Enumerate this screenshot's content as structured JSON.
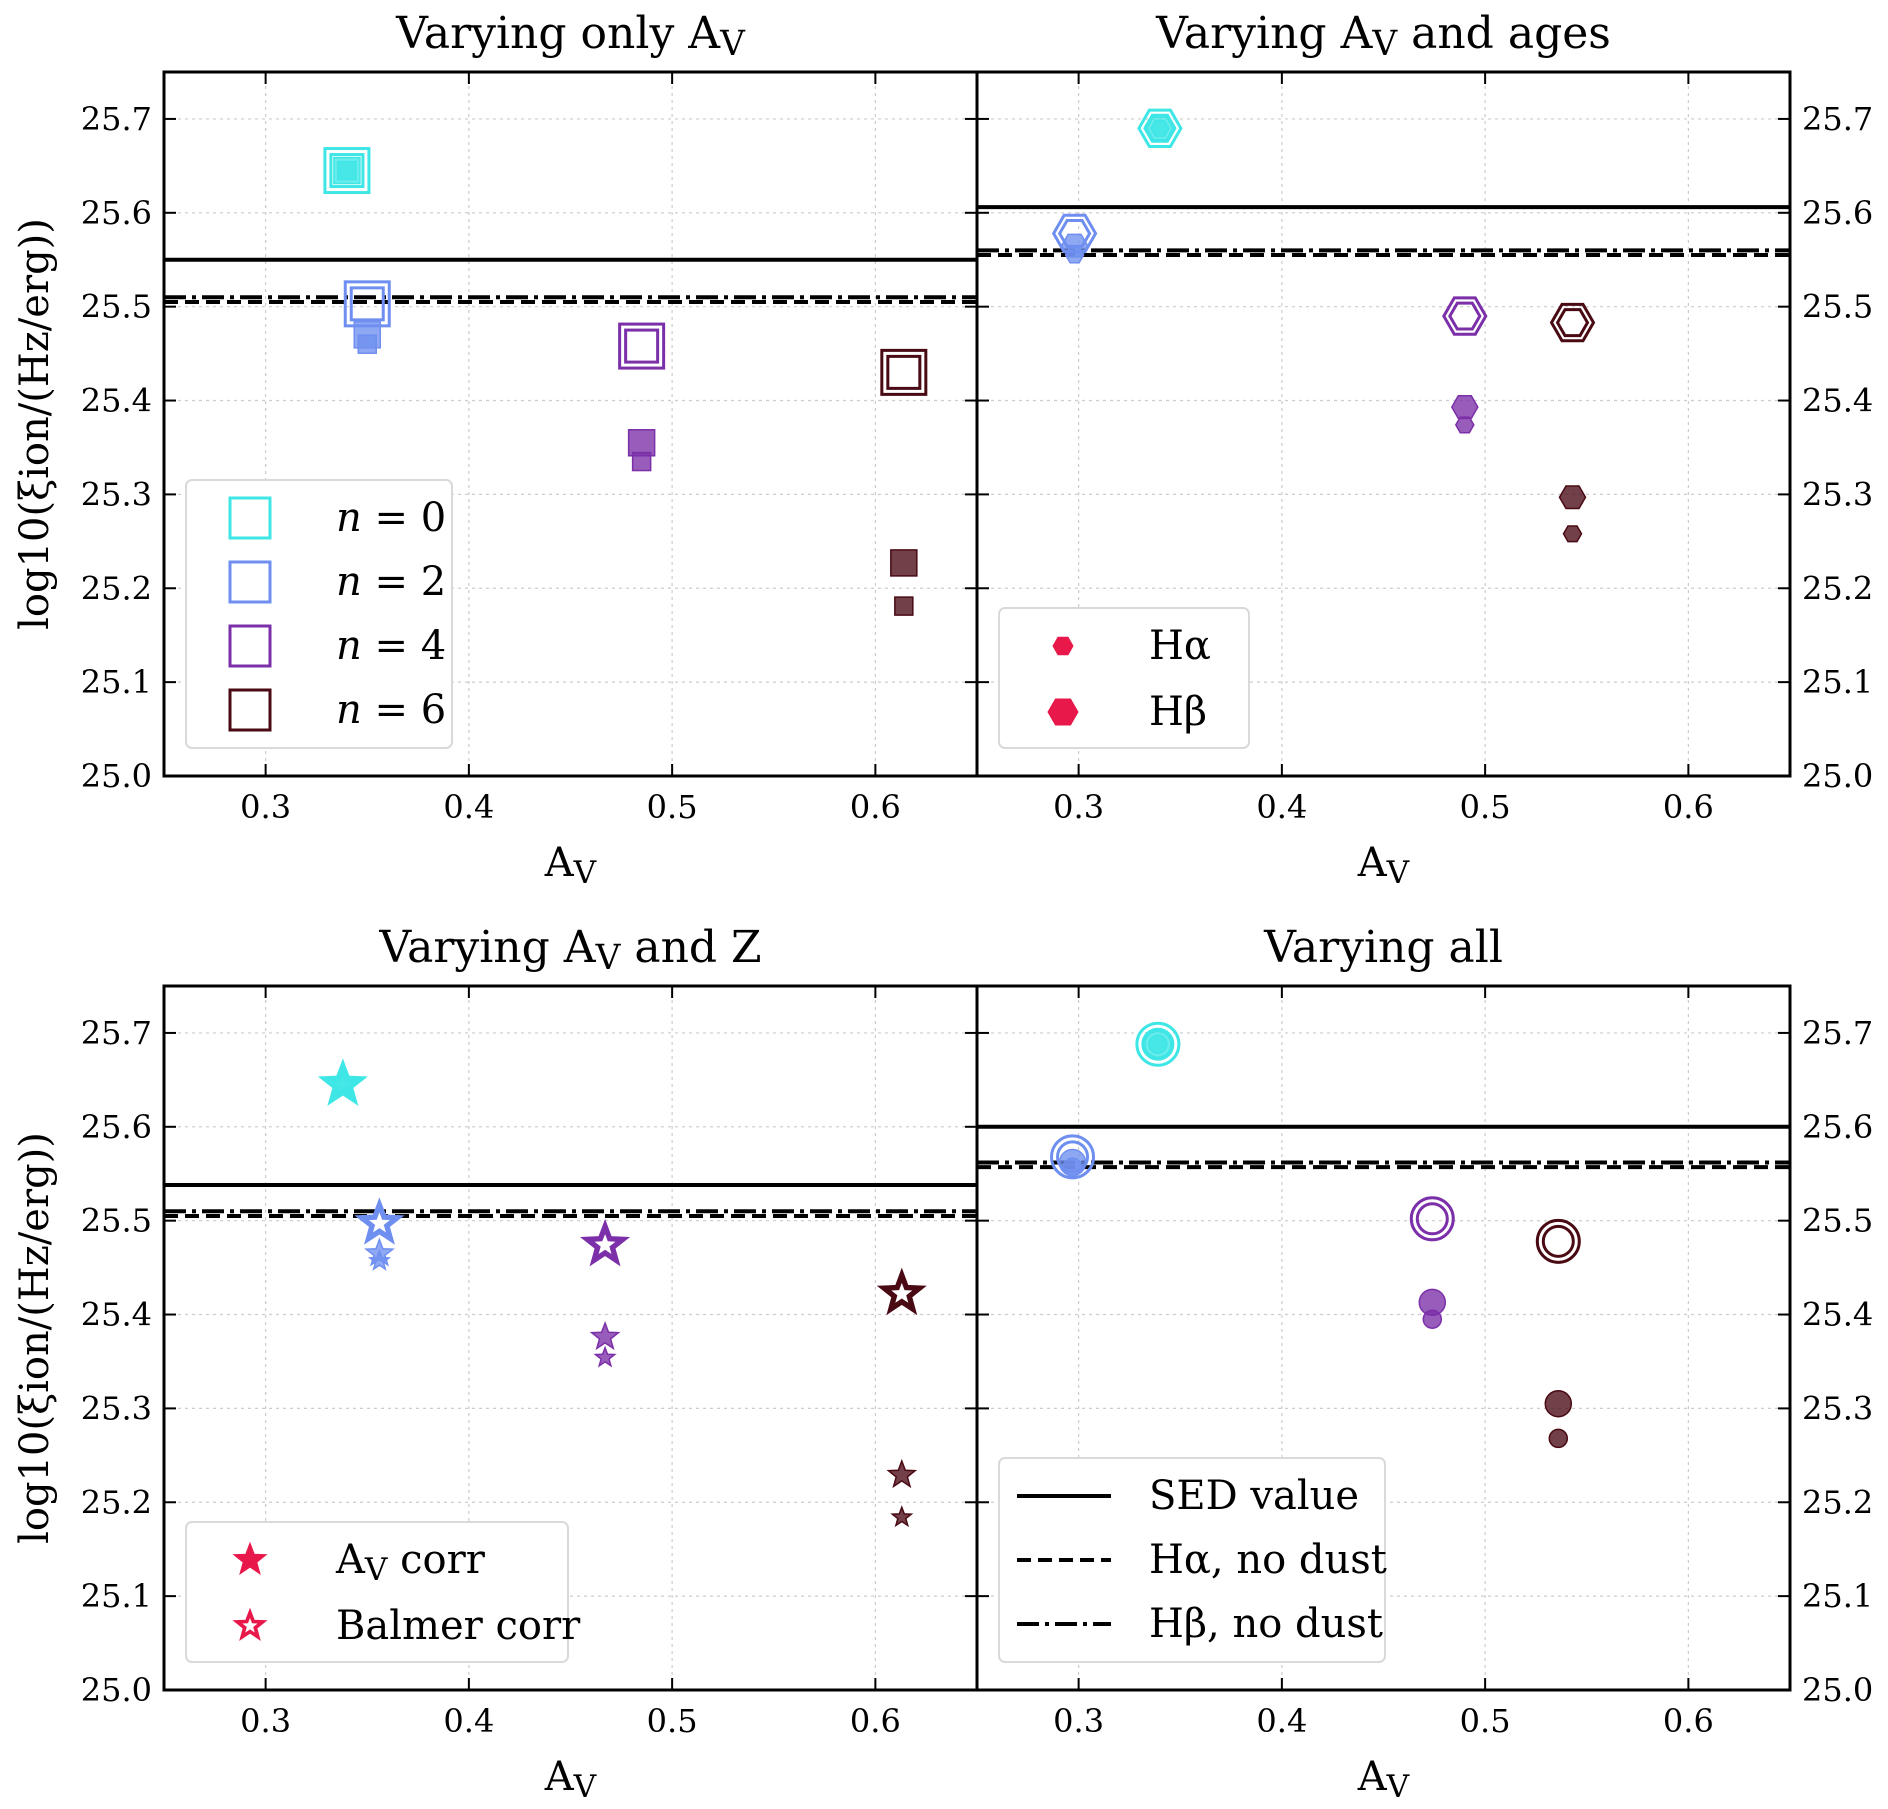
{
  "colors": {
    "n0": "#3ee6e6",
    "n2": "#6f8ff0",
    "n4": "#7b2fa8",
    "n6": "#4a0a14",
    "legend_marker": "#e8184a"
  },
  "chart_data": [
    {
      "type": "scatter",
      "title": "Varying only A_V",
      "title_main": "Varying only A",
      "title_sub": "V",
      "xlabel": "A",
      "xlabel_sub": "V",
      "ylabel": "log10(ξion/(Hz/erg))",
      "xlim": [
        0.25,
        0.65
      ],
      "ylim": [
        25.0,
        25.75
      ],
      "xticks": [
        "0.3",
        "0.4",
        "0.5",
        "0.6"
      ],
      "yticks": [
        "25.0",
        "25.1",
        "25.2",
        "25.3",
        "25.4",
        "25.5",
        "25.6",
        "25.7"
      ],
      "grid": true,
      "marker": "square",
      "sed_value": 25.55,
      "halpha_no_dust": 25.505,
      "hbeta_no_dust": 25.51,
      "series": [
        {
          "name": "n = 0",
          "color_key": "n0",
          "x": 0.34,
          "ha": 25.645,
          "hb": 25.645,
          "sed": 25.645
        },
        {
          "name": "n = 2",
          "color_key": "n2",
          "x": 0.35,
          "ha": 25.46,
          "hb": 25.47,
          "sed": 25.503
        },
        {
          "name": "n = 4",
          "color_key": "n4",
          "x": 0.485,
          "ha": 25.335,
          "hb": 25.355,
          "sed": 25.458
        },
        {
          "name": "n = 6",
          "color_key": "n6",
          "x": 0.614,
          "ha": 25.181,
          "hb": 25.227,
          "sed": 25.43
        }
      ],
      "legend": {
        "placement": "lower-left",
        "entries": [
          {
            "prefix": "n",
            "text": " = 0",
            "color_key": "n0"
          },
          {
            "prefix": "n",
            "text": " = 2",
            "color_key": "n2"
          },
          {
            "prefix": "n",
            "text": " = 4",
            "color_key": "n4"
          },
          {
            "prefix": "n",
            "text": " = 6",
            "color_key": "n6"
          }
        ]
      }
    },
    {
      "type": "scatter",
      "title": "Varying A_V and ages",
      "title_main": "Varying A",
      "title_sub": "V",
      "title_rest": " and ages",
      "xlabel": "A",
      "xlabel_sub": "V",
      "xlim": [
        0.25,
        0.65
      ],
      "ylim": [
        25.0,
        25.75
      ],
      "xticks": [
        "0.3",
        "0.4",
        "0.5",
        "0.6"
      ],
      "yticks": [
        "25.0",
        "25.1",
        "25.2",
        "25.3",
        "25.4",
        "25.5",
        "25.6",
        "25.7"
      ],
      "grid": true,
      "marker": "hexagon",
      "sed_value": 25.606,
      "halpha_no_dust": 25.555,
      "hbeta_no_dust": 25.56,
      "series": [
        {
          "color_key": "n0",
          "x": 0.34,
          "ha": 25.69,
          "hb": 25.69,
          "sed": 25.69
        },
        {
          "color_key": "n2",
          "x": 0.298,
          "ha": 25.555,
          "hb": 25.565,
          "sed": 25.578
        },
        {
          "color_key": "n4",
          "x": 0.49,
          "ha": 25.374,
          "hb": 25.393,
          "sed": 25.49
        },
        {
          "color_key": "n6",
          "x": 0.543,
          "ha": 25.258,
          "hb": 25.297,
          "sed": 25.483
        }
      ],
      "legend": {
        "placement": "lower-left",
        "entries": [
          {
            "label": "Hα",
            "marker": "hexagon-small"
          },
          {
            "label": "Hβ",
            "marker": "hexagon-large"
          }
        ]
      }
    },
    {
      "type": "scatter",
      "title": "Varying A_V and Z",
      "title_main": "Varying A",
      "title_sub": "V",
      "title_rest": " and Z",
      "xlabel": "A",
      "xlabel_sub": "V",
      "ylabel": "log10(ξion/(Hz/erg))",
      "xlim": [
        0.25,
        0.65
      ],
      "ylim": [
        25.0,
        25.75
      ],
      "xticks": [
        "0.3",
        "0.4",
        "0.5",
        "0.6"
      ],
      "yticks": [
        "25.0",
        "25.1",
        "25.2",
        "25.3",
        "25.4",
        "25.5",
        "25.6",
        "25.7"
      ],
      "grid": true,
      "marker": "star",
      "sed_value": 25.538,
      "halpha_no_dust": 25.505,
      "hbeta_no_dust": 25.51,
      "series": [
        {
          "color_key": "n0",
          "x": 0.338,
          "ha": 25.645,
          "hb": 25.645,
          "sed": 25.645
        },
        {
          "color_key": "n2",
          "x": 0.356,
          "ha": 25.457,
          "hb": 25.465,
          "sed": 25.497
        },
        {
          "color_key": "n4",
          "x": 0.467,
          "ha": 25.354,
          "hb": 25.376,
          "sed": 25.474
        },
        {
          "color_key": "n6",
          "x": 0.613,
          "ha": 25.184,
          "hb": 25.229,
          "sed": 25.422
        }
      ],
      "legend": {
        "placement": "lower-left",
        "entries": [
          {
            "label_main": "A",
            "label_sub": "V",
            "label_rest": " corr",
            "marker": "star-filled"
          },
          {
            "label": "Balmer corr",
            "marker": "star-open"
          }
        ]
      }
    },
    {
      "type": "scatter",
      "title": "Varying all",
      "title_main": "Varying all",
      "xlabel": "A",
      "xlabel_sub": "V",
      "xlim": [
        0.25,
        0.65
      ],
      "ylim": [
        25.0,
        25.75
      ],
      "xticks": [
        "0.3",
        "0.4",
        "0.5",
        "0.6"
      ],
      "yticks": [
        "25.0",
        "25.1",
        "25.2",
        "25.3",
        "25.4",
        "25.5",
        "25.6",
        "25.7"
      ],
      "grid": true,
      "marker": "circle",
      "sed_value": 25.6,
      "halpha_no_dust": 25.557,
      "hbeta_no_dust": 25.562,
      "series": [
        {
          "color_key": "n0",
          "x": 0.339,
          "ha": 25.688,
          "hb": 25.688,
          "sed": 25.688
        },
        {
          "color_key": "n2",
          "x": 0.297,
          "ha": 25.557,
          "hb": 25.562,
          "sed": 25.568
        },
        {
          "color_key": "n4",
          "x": 0.474,
          "ha": 25.395,
          "hb": 25.413,
          "sed": 25.502
        },
        {
          "color_key": "n6",
          "x": 0.536,
          "ha": 25.268,
          "hb": 25.305,
          "sed": 25.478
        }
      ],
      "legend": {
        "placement": "lower-left",
        "entries": [
          {
            "label": "SED value",
            "line": "solid"
          },
          {
            "label": "Hα, no dust",
            "line": "dashed"
          },
          {
            "label": "Hβ, no dust",
            "line": "dashdot"
          }
        ]
      }
    }
  ]
}
